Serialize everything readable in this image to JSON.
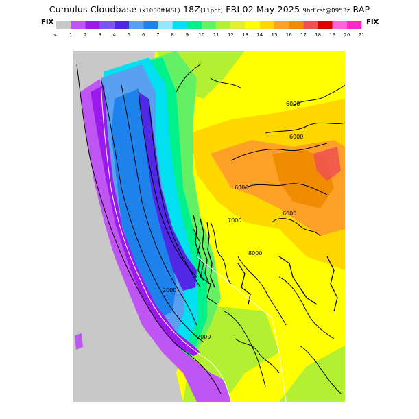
{
  "title": {
    "main": "Cumulus Cloudbase",
    "units": "(x1000ftMSL)",
    "valid": "18Z",
    "valid_local": "(11pdt)",
    "date": "FRI 02 May 2025",
    "forecast": "9hrFcst@0953z",
    "model": "RAP"
  },
  "colorbar": {
    "fix_left": "FIX",
    "fix_right": "FIX",
    "under_label": "<",
    "over_label": ">",
    "labels": [
      "1",
      "2",
      "3",
      "4",
      "5",
      "6",
      "7",
      "8",
      "9",
      "10",
      "11",
      "12",
      "13",
      "14",
      "15",
      "16",
      "17",
      "18",
      "19",
      "20",
      "21"
    ],
    "colors": [
      "#c8c8c8",
      "#bf55f2",
      "#9a19ec",
      "#7a55f0",
      "#5028e6",
      "#5aa0f0",
      "#1e82ec",
      "#96e6ff",
      "#00e0f0",
      "#00f08c",
      "#64f064",
      "#b4f032",
      "#e0f02c",
      "#ffff00",
      "#ffd700",
      "#ffa028",
      "#f08c00",
      "#f05050",
      "#e00000",
      "#ff64dc",
      "#ff28c8"
    ]
  },
  "map": {
    "contour_labels": [
      "6000",
      "6000",
      "6000",
      "6000",
      "7000",
      "2000",
      "8000",
      "2000"
    ],
    "legend_colors": {
      "background_nodata": "#c8c8c8",
      "coast_purple": "#bf55f2",
      "mid_purple": "#9a19ec",
      "dark_blue": "#5028e6",
      "light_blue": "#5aa0f0",
      "cyan": "#96e6ff",
      "green": "#00f08c",
      "lime": "#b4f032",
      "yellow": "#ffff00",
      "gold": "#ffd700",
      "orange": "#ffa028",
      "salmon": "#f08c00",
      "pink": "#f05050"
    }
  }
}
